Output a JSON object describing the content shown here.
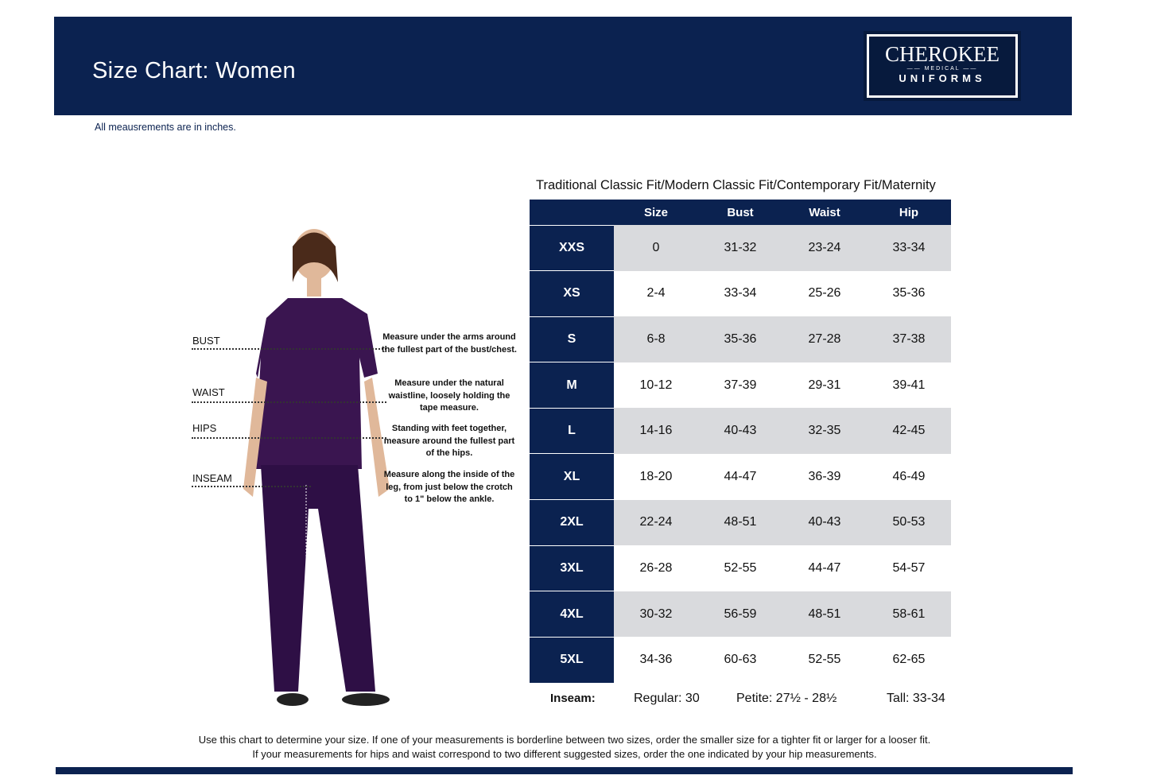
{
  "header": {
    "title": "Size Chart: Women",
    "logo": {
      "brand": "CHEROKEE",
      "sub": "MEDICAL",
      "line": "UNIFORMS"
    }
  },
  "note": "All meausrements are in inches.",
  "measures": [
    {
      "label": "BUST",
      "desc": "Measure under the arms around the fullest part of the bust/chest."
    },
    {
      "label": "WAIST",
      "desc": "Measure under the natural waistline, loosely holding the tape measure."
    },
    {
      "label": "HIPS",
      "desc": "Standing with feet together, measure around the fullest part of the hips."
    },
    {
      "label": "INSEAM",
      "desc": "Measure along the inside of the leg, from just below the crotch to 1\" below the ankle."
    }
  ],
  "table": {
    "title": "Traditional Classic Fit/Modern Classic Fit/Contemporary Fit/Maternity",
    "headers": [
      "",
      "Size",
      "Bust",
      "Waist",
      "Hip"
    ],
    "rows": [
      [
        "XXS",
        "0",
        "31-32",
        "23-24",
        "33-34"
      ],
      [
        "XS",
        "2-4",
        "33-34",
        "25-26",
        "35-36"
      ],
      [
        "S",
        "6-8",
        "35-36",
        "27-28",
        "37-38"
      ],
      [
        "M",
        "10-12",
        "37-39",
        "29-31",
        "39-41"
      ],
      [
        "L",
        "14-16",
        "40-43",
        "32-35",
        "42-45"
      ],
      [
        "XL",
        "18-20",
        "44-47",
        "36-39",
        "46-49"
      ],
      [
        "2XL",
        "22-24",
        "48-51",
        "40-43",
        "50-53"
      ],
      [
        "3XL",
        "26-28",
        "52-55",
        "44-47",
        "54-57"
      ],
      [
        "4XL",
        "30-32",
        "56-59",
        "48-51",
        "58-61"
      ],
      [
        "5XL",
        "34-36",
        "60-63",
        "52-55",
        "62-65"
      ]
    ]
  },
  "inseam": {
    "label": "Inseam:",
    "regular": "Regular: 30",
    "petite": "Petite: 27½ - 28½",
    "tall": "Tall: 33-34"
  },
  "footer": [
    "Use this chart to determine your size. If one of your measurements is borderline between two sizes, order the smaller size for a tighter fit or larger for a looser fit.",
    "If your measurements for hips and waist correspond to two different suggested sizes, order the one indicated by your hip measurements."
  ],
  "colors": {
    "navy": "#0b2250",
    "scrubs": "#3a1550",
    "row_gray": "#d9dadd"
  }
}
